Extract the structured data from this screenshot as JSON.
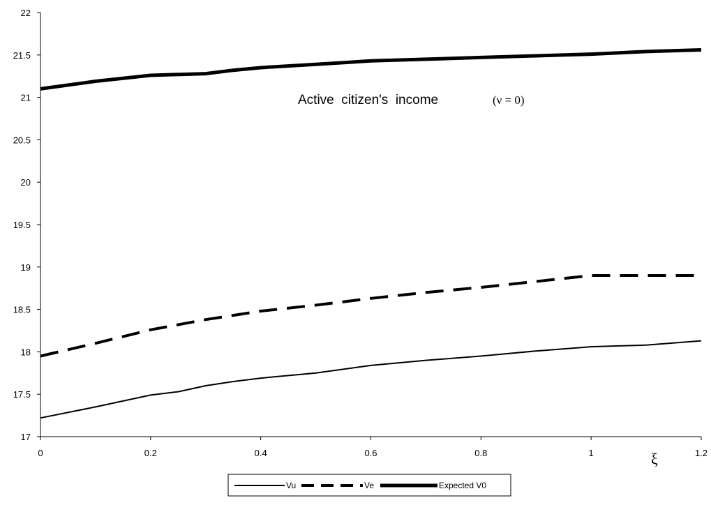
{
  "chart_data": {
    "type": "line",
    "title": "",
    "xlabel": "ξ",
    "ylabel": "",
    "xlim": [
      0,
      1.2
    ],
    "ylim": [
      17,
      22
    ],
    "x_ticks": [
      "0",
      "0.2",
      "0.4",
      "0.6",
      "0.8",
      "1",
      "1.2"
    ],
    "y_ticks": [
      "17",
      "17.5",
      "18",
      "18.5",
      "19",
      "19.5",
      "20",
      "20.5",
      "21",
      "21.5",
      "22"
    ],
    "grid": false,
    "legend_position": "bottom-center",
    "annotation": {
      "text": "Active  citizen's  income",
      "subtext": "(ν = 0)"
    },
    "series": [
      {
        "name": "Vu",
        "style": "thin-solid",
        "color": "#000000",
        "x": [
          0,
          0.1,
          0.2,
          0.25,
          0.3,
          0.35,
          0.4,
          0.5,
          0.6,
          0.7,
          0.8,
          0.9,
          1.0,
          1.1,
          1.2
        ],
        "y": [
          17.22,
          17.35,
          17.49,
          17.53,
          17.6,
          17.65,
          17.69,
          17.75,
          17.84,
          17.9,
          17.95,
          18.01,
          18.06,
          18.08,
          18.13
        ]
      },
      {
        "name": "Ve",
        "style": "thick-dashed",
        "color": "#000000",
        "x": [
          0,
          0.1,
          0.2,
          0.3,
          0.4,
          0.5,
          0.6,
          0.7,
          0.8,
          0.9,
          1.0,
          1.1,
          1.2
        ],
        "y": [
          17.95,
          18.1,
          18.26,
          18.38,
          18.48,
          18.55,
          18.63,
          18.7,
          18.76,
          18.83,
          18.9,
          18.9,
          18.9
        ]
      },
      {
        "name": "Expected V0",
        "style": "thick-solid",
        "color": "#000000",
        "x": [
          0,
          0.1,
          0.2,
          0.3,
          0.35,
          0.4,
          0.5,
          0.6,
          0.7,
          0.8,
          0.9,
          1.0,
          1.1,
          1.2
        ],
        "y": [
          21.1,
          21.19,
          21.26,
          21.28,
          21.32,
          21.35,
          21.39,
          21.43,
          21.45,
          21.47,
          21.49,
          21.51,
          21.54,
          21.56
        ]
      }
    ]
  }
}
